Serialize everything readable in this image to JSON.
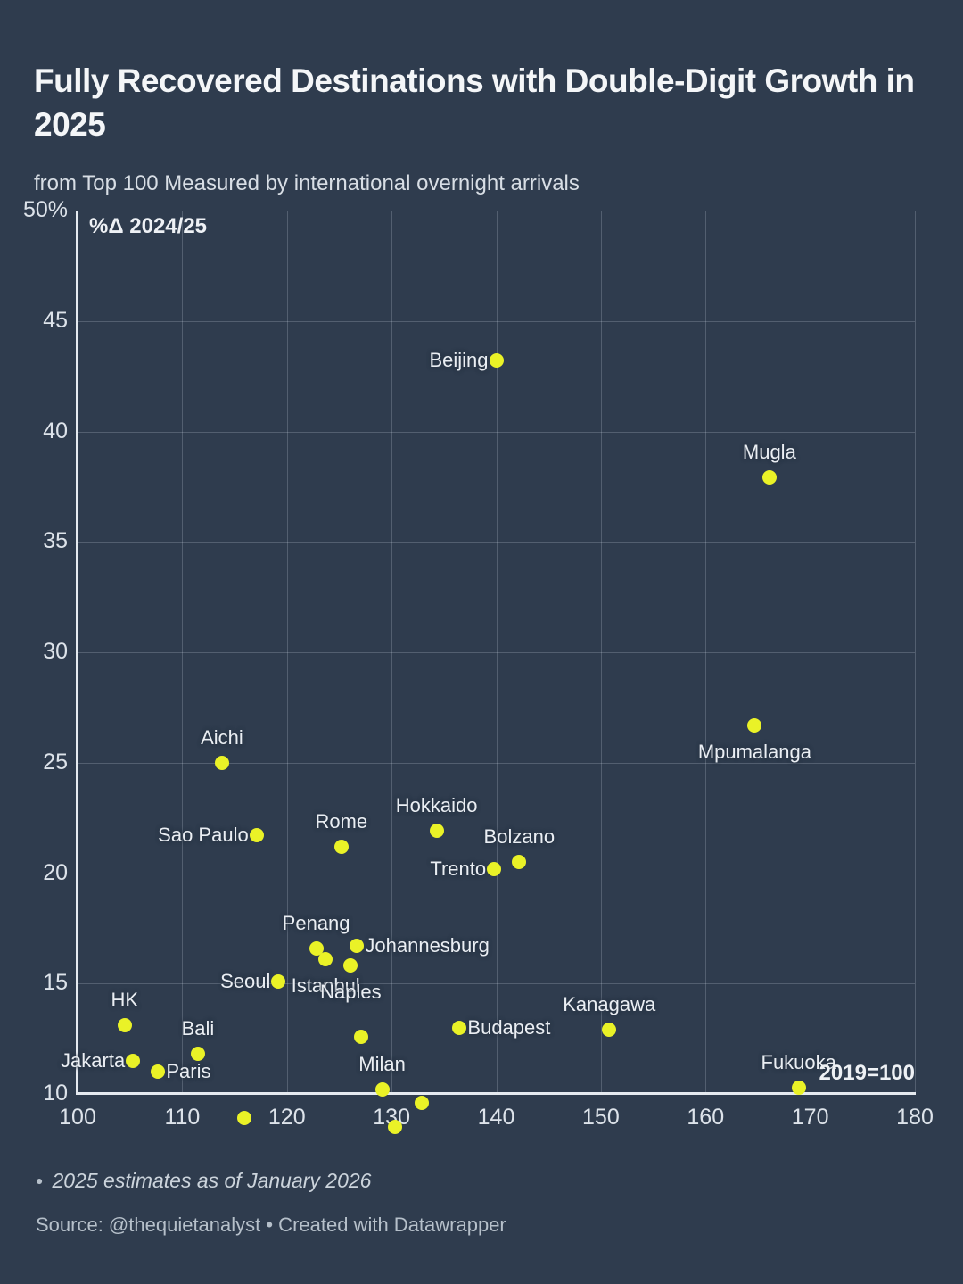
{
  "header": {
    "title": "Fully Recovered Destinations with Double-Digit Growth in 2025",
    "subtitle": "from Top 100 Measured by international overnight arrivals"
  },
  "colors": {
    "background": "#2f3c4e",
    "dot": "#eaf227",
    "text": "#eaeef3"
  },
  "chart_data": {
    "type": "scatter",
    "x_axis": {
      "label": "2019=100",
      "min": 100,
      "max": 180,
      "ticks": [
        {
          "v": 100,
          "label": "100"
        },
        {
          "v": 110,
          "label": "110"
        },
        {
          "v": 120,
          "label": "120"
        },
        {
          "v": 130,
          "label": "130"
        },
        {
          "v": 140,
          "label": "140"
        },
        {
          "v": 150,
          "label": "150"
        },
        {
          "v": 160,
          "label": "160"
        },
        {
          "v": 170,
          "label": "170"
        },
        {
          "v": 180,
          "label": "180"
        }
      ]
    },
    "y_axis": {
      "label": "%Δ 2024/25",
      "min": 10,
      "max": 50,
      "ticks": [
        {
          "v": 50,
          "label": "50%"
        },
        {
          "v": 45,
          "label": "45"
        },
        {
          "v": 40,
          "label": "40"
        },
        {
          "v": 35,
          "label": "35"
        },
        {
          "v": 30,
          "label": "30"
        },
        {
          "v": 25,
          "label": "25"
        },
        {
          "v": 20,
          "label": "20"
        },
        {
          "v": 15,
          "label": "15"
        },
        {
          "v": 10,
          "label": "10"
        }
      ]
    },
    "points": [
      {
        "label": "Beijing",
        "x": 140.0,
        "y": 43.2,
        "label_pos": "left"
      },
      {
        "label": "Mugla",
        "x": 166.1,
        "y": 37.9,
        "label_pos": "above"
      },
      {
        "label": "Mpumalanga",
        "x": 164.7,
        "y": 26.7,
        "label_pos": "below"
      },
      {
        "label": "Aichi",
        "x": 113.8,
        "y": 25.0,
        "label_pos": "above"
      },
      {
        "label": "Sao Paulo",
        "x": 117.1,
        "y": 21.7,
        "label_pos": "left"
      },
      {
        "label": "Rome",
        "x": 125.2,
        "y": 21.2,
        "label_pos": "above"
      },
      {
        "label": "Hokkaido",
        "x": 134.3,
        "y": 21.9,
        "label_pos": "above"
      },
      {
        "label": "Bolzano",
        "x": 142.2,
        "y": 20.5,
        "label_pos": "above"
      },
      {
        "label": "Trento",
        "x": 139.8,
        "y": 20.2,
        "label_pos": "left"
      },
      {
        "label": "Penang",
        "x": 122.8,
        "y": 16.6,
        "label_pos": "above"
      },
      {
        "label": "Istanbul",
        "x": 123.7,
        "y": 16.1,
        "label_pos": "below"
      },
      {
        "label": "Johannesburg",
        "x": 126.7,
        "y": 16.7,
        "label_pos": "right"
      },
      {
        "label": "Naples",
        "x": 126.1,
        "y": 15.8,
        "label_pos": "below"
      },
      {
        "label": "Seoul",
        "x": 119.2,
        "y": 15.1,
        "label_pos": "left"
      },
      {
        "label": "HK",
        "x": 104.5,
        "y": 13.1,
        "label_pos": "above"
      },
      {
        "label": "Bali",
        "x": 111.5,
        "y": 11.8,
        "label_pos": "above"
      },
      {
        "label": "Jakarta",
        "x": 105.3,
        "y": 11.5,
        "label_pos": "left"
      },
      {
        "label": "Paris",
        "x": 107.7,
        "y": 11.0,
        "label_pos": "right"
      },
      {
        "label": "Budapest",
        "x": 136.5,
        "y": 13.0,
        "label_pos": "right"
      },
      {
        "label": "Kanagawa",
        "x": 150.8,
        "y": 12.9,
        "label_pos": "above"
      },
      {
        "label": "Milan",
        "x": 129.1,
        "y": 10.2,
        "label_pos": "above"
      },
      {
        "label": "Fukuoka",
        "x": 168.9,
        "y": 10.3,
        "label_pos": "above"
      }
    ],
    "unlabeled_points": [
      {
        "x": 127.1,
        "y": 12.6
      },
      {
        "x": 115.9,
        "y": 8.9
      },
      {
        "x": 132.9,
        "y": 9.6
      },
      {
        "x": 130.3,
        "y": 8.5,
        "clipped": true
      }
    ],
    "grid": true,
    "legend": "none"
  },
  "footnote": {
    "marker": "●",
    "text": "2025 estimates as of January 2026"
  },
  "source": "Source: @thequietanalyst • Created with Datawrapper"
}
